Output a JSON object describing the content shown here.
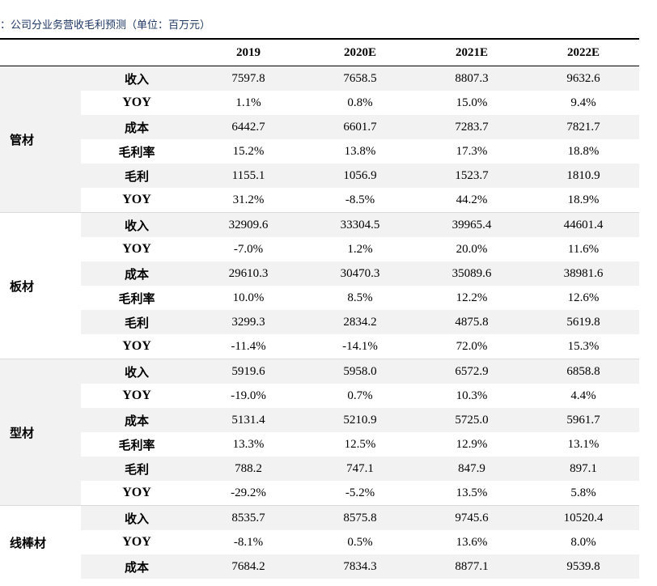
{
  "caption": "：公司分业务营收毛利预测（单位：百万元）",
  "headers": [
    "",
    "",
    "2019",
    "2020E",
    "2021E",
    "2022E"
  ],
  "groups": [
    {
      "segment": "管材",
      "rows": [
        {
          "item": "收入",
          "values": [
            "7597.8",
            "7658.5",
            "8807.3",
            "9632.6"
          ]
        },
        {
          "item": "YOY",
          "values": [
            "1.1%",
            "0.8%",
            "15.0%",
            "9.4%"
          ]
        },
        {
          "item": "成本",
          "values": [
            "6442.7",
            "6601.7",
            "7283.7",
            "7821.7"
          ]
        },
        {
          "item": "毛利率",
          "values": [
            "15.2%",
            "13.8%",
            "17.3%",
            "18.8%"
          ]
        },
        {
          "item": "毛利",
          "values": [
            "1155.1",
            "1056.9",
            "1523.7",
            "1810.9"
          ]
        },
        {
          "item": "YOY",
          "values": [
            "31.2%",
            "-8.5%",
            "44.2%",
            "18.9%"
          ]
        }
      ]
    },
    {
      "segment": "板材",
      "rows": [
        {
          "item": "收入",
          "values": [
            "32909.6",
            "33304.5",
            "39965.4",
            "44601.4"
          ]
        },
        {
          "item": "YOY",
          "values": [
            "-7.0%",
            "1.2%",
            "20.0%",
            "11.6%"
          ]
        },
        {
          "item": "成本",
          "values": [
            "29610.3",
            "30470.3",
            "35089.6",
            "38981.6"
          ]
        },
        {
          "item": "毛利率",
          "values": [
            "10.0%",
            "8.5%",
            "12.2%",
            "12.6%"
          ]
        },
        {
          "item": "毛利",
          "values": [
            "3299.3",
            "2834.2",
            "4875.8",
            "5619.8"
          ]
        },
        {
          "item": "YOY",
          "values": [
            "-11.4%",
            "-14.1%",
            "72.0%",
            "15.3%"
          ]
        }
      ]
    },
    {
      "segment": "型材",
      "rows": [
        {
          "item": "收入",
          "values": [
            "5919.6",
            "5958.0",
            "6572.9",
            "6858.8"
          ]
        },
        {
          "item": "YOY",
          "values": [
            "-19.0%",
            "0.7%",
            "10.3%",
            "4.4%"
          ]
        },
        {
          "item": "成本",
          "values": [
            "5131.4",
            "5210.9",
            "5725.0",
            "5961.7"
          ]
        },
        {
          "item": "毛利率",
          "values": [
            "13.3%",
            "12.5%",
            "12.9%",
            "13.1%"
          ]
        },
        {
          "item": "毛利",
          "values": [
            "788.2",
            "747.1",
            "847.9",
            "897.1"
          ]
        },
        {
          "item": "YOY",
          "values": [
            "-29.2%",
            "-5.2%",
            "13.5%",
            "5.8%"
          ]
        }
      ]
    },
    {
      "segment": "线棒材",
      "rows": [
        {
          "item": "收入",
          "values": [
            "8535.7",
            "8575.8",
            "9745.6",
            "10520.4"
          ]
        },
        {
          "item": "YOY",
          "values": [
            "-8.1%",
            "0.5%",
            "13.6%",
            "8.0%"
          ]
        },
        {
          "item": "成本",
          "values": [
            "7684.2",
            "7834.3",
            "8877.1",
            "9539.8"
          ]
        }
      ]
    }
  ]
}
